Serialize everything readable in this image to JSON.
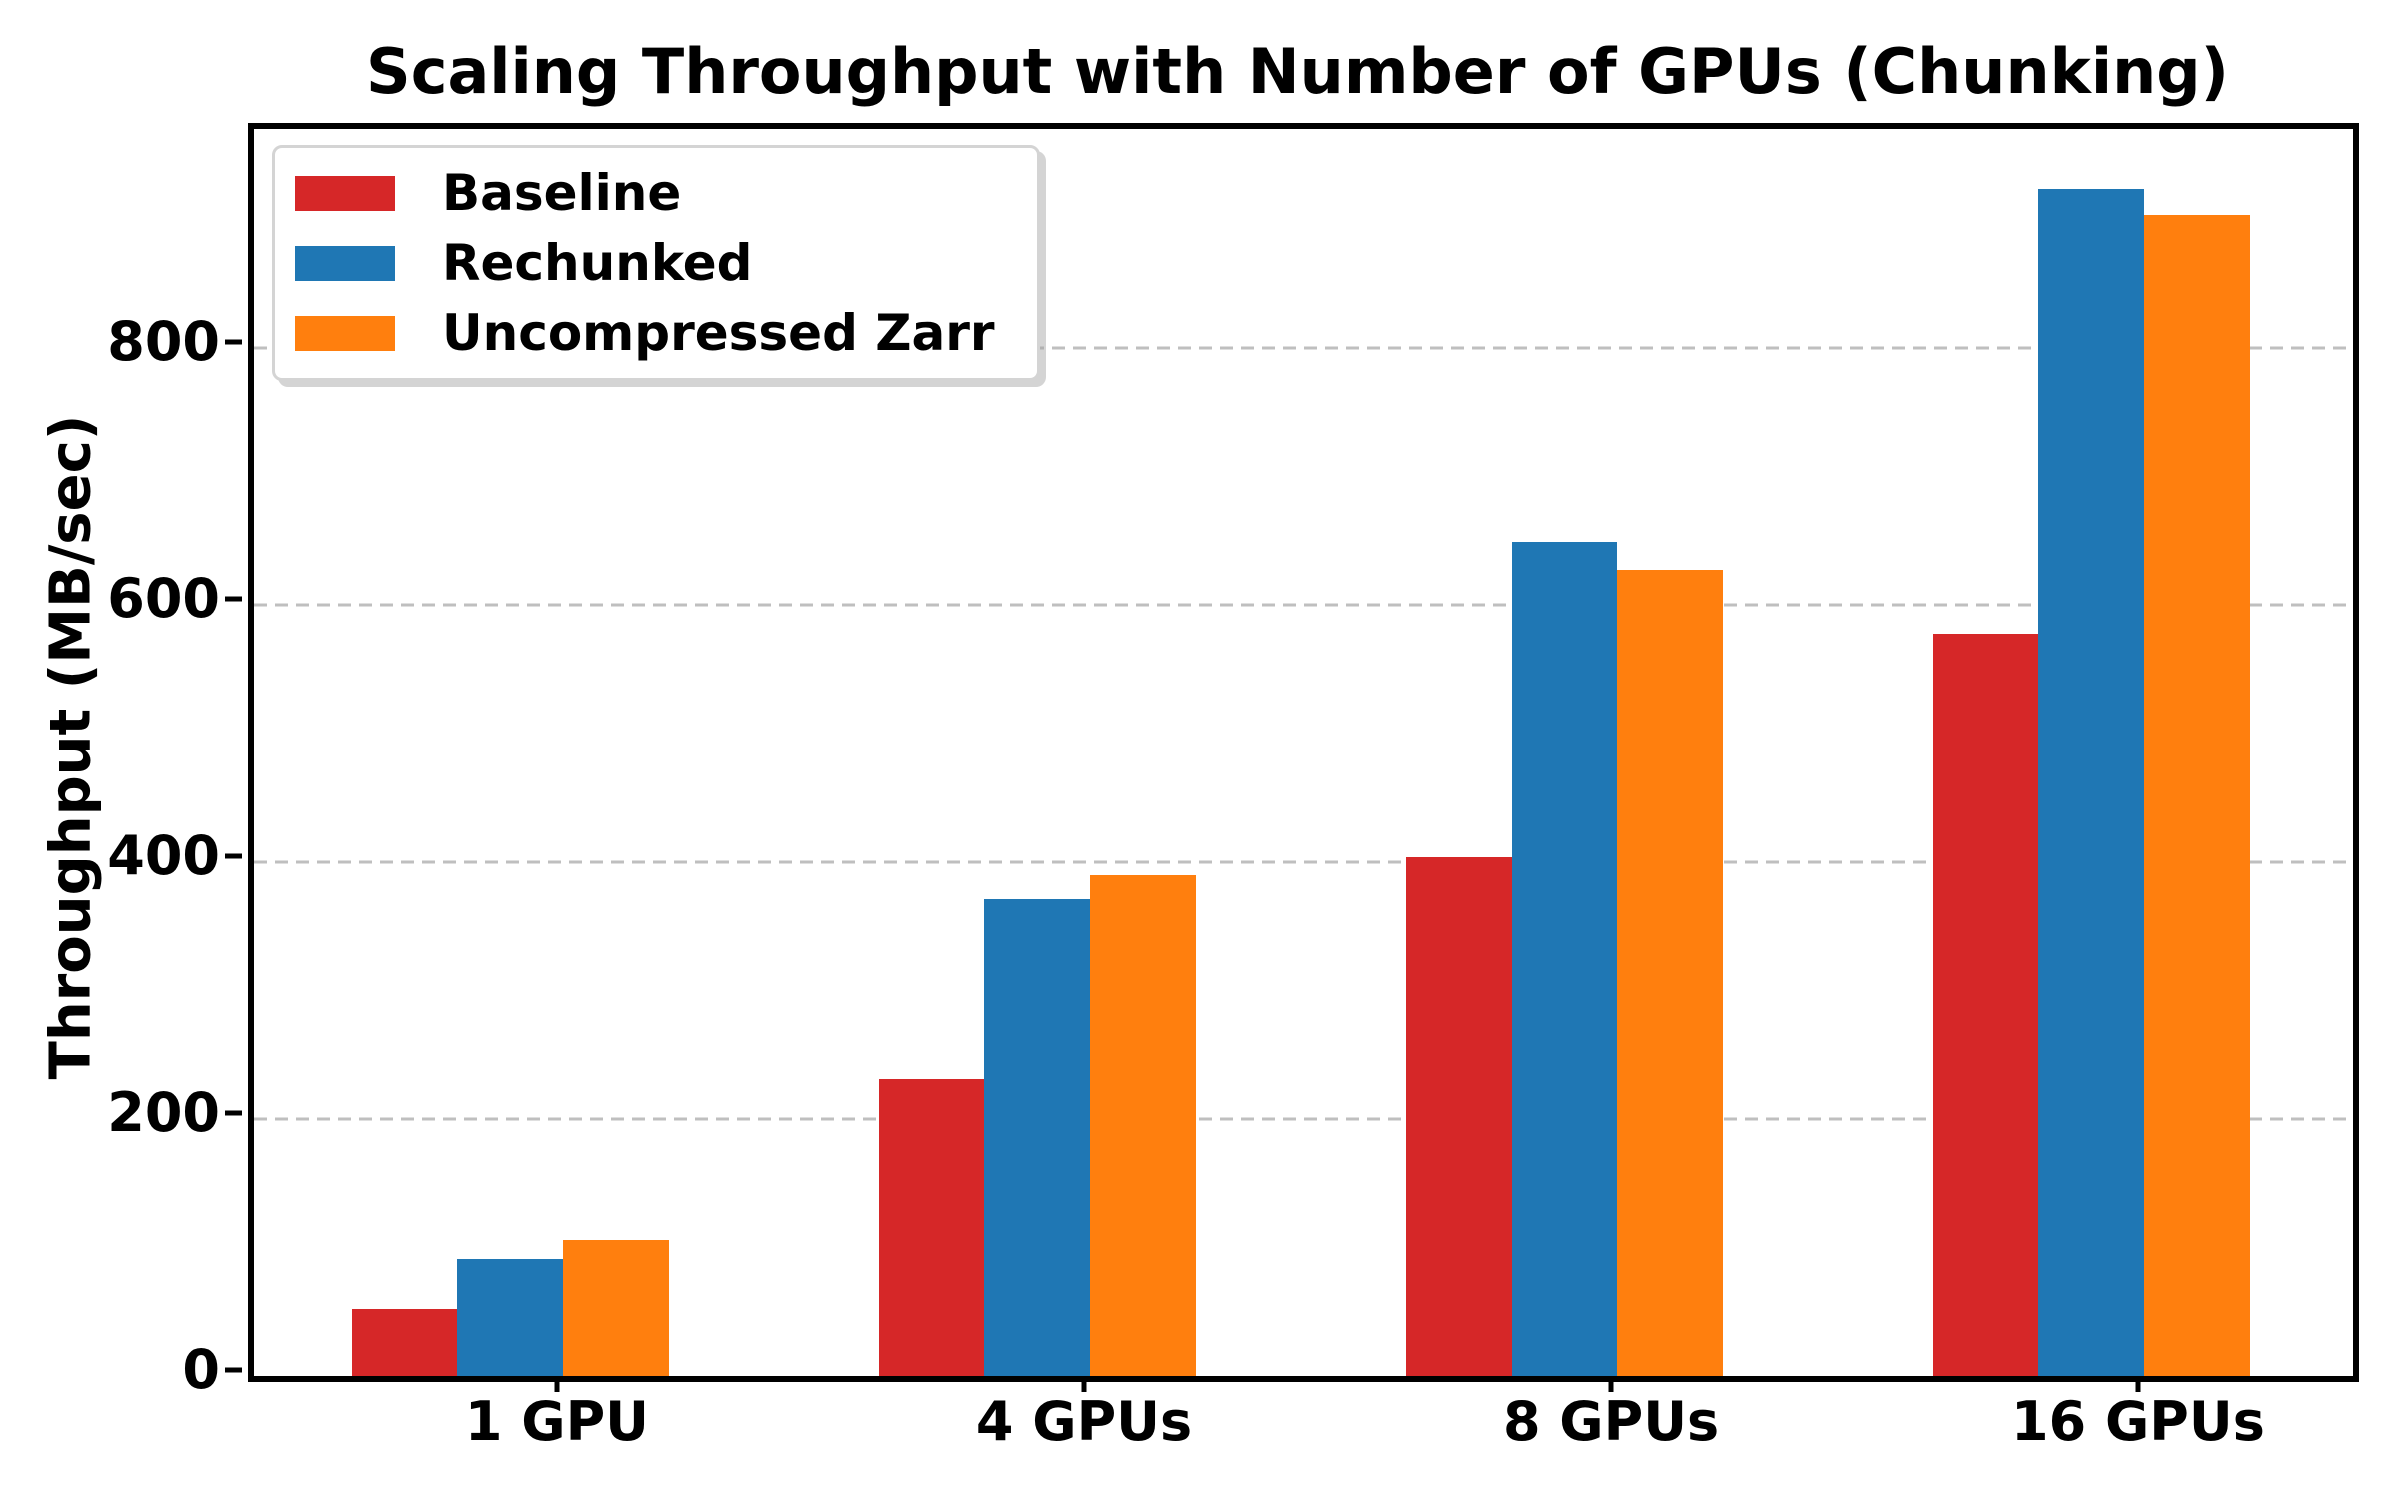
{
  "chart_data": {
    "type": "bar",
    "title": "Scaling Throughput with Number of GPUs (Chunking)",
    "xlabel": "",
    "ylabel": "Throughput (MB/sec)",
    "categories": [
      "1 GPU",
      "4 GPUs",
      "8 GPUs",
      "16 GPUs"
    ],
    "series": [
      {
        "name": "Baseline",
        "color": "#d62728",
        "values": [
          52,
          231,
          404,
          577
        ]
      },
      {
        "name": "Rechunked",
        "color": "#1f77b4",
        "values": [
          91,
          371,
          649,
          923
        ]
      },
      {
        "name": "Uncompressed Zarr",
        "color": "#ff7f0e",
        "values": [
          106,
          390,
          627,
          903
        ]
      }
    ],
    "ylim": [
      0,
      970
    ],
    "yticks": [
      0,
      200,
      400,
      600,
      800
    ],
    "grid": "horizontal dashed",
    "grid_color": "#bfbfbf",
    "axis_color": "#000000",
    "legend_position": "upper left"
  }
}
